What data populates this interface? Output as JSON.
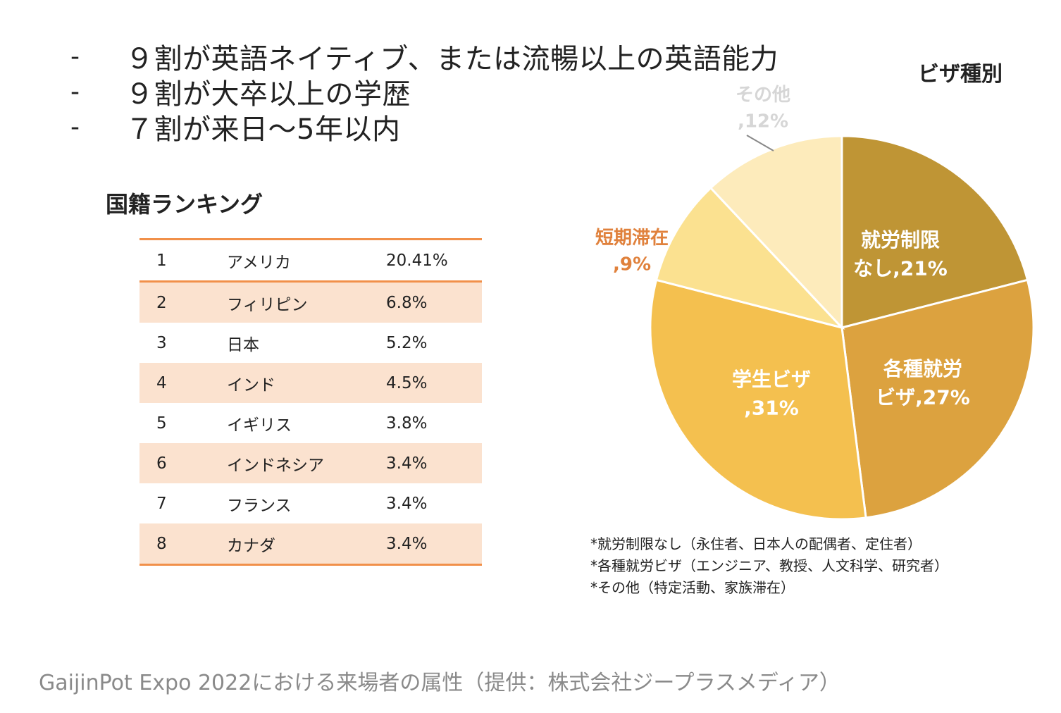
{
  "bullets": [
    {
      "dash": "-",
      "text": "９割が英語ネイティブ、または流暢以上の英語能力"
    },
    {
      "dash": "-",
      "text": "９割が大卒以上の学歴"
    },
    {
      "dash": "-",
      "text": "７割が来日～5年以内"
    }
  ],
  "ranking": {
    "title": "国籍ランキング",
    "rows": [
      {
        "rank": "1",
        "country": "アメリカ",
        "pct": "20.41%"
      },
      {
        "rank": "2",
        "country": "フィリピン",
        "pct": "6.8%"
      },
      {
        "rank": "3",
        "country": "日本",
        "pct": "5.2%"
      },
      {
        "rank": "4",
        "country": "インド",
        "pct": "4.5%"
      },
      {
        "rank": "5",
        "country": "イギリス",
        "pct": "3.8%"
      },
      {
        "rank": "6",
        "country": "インドネシア",
        "pct": "3.4%"
      },
      {
        "rank": "7",
        "country": "フランス",
        "pct": "3.4%"
      },
      {
        "rank": "8",
        "country": "カナダ",
        "pct": "3.4%"
      }
    ]
  },
  "chart_data": {
    "type": "pie",
    "title": "ビザ種別",
    "slices": [
      {
        "label_lines": [
          "就労制限",
          "なし,21%"
        ],
        "value": 21,
        "color": "#bf9535",
        "label_color": "#ffffff"
      },
      {
        "label_lines": [
          "各種就労",
          "ビザ,27%"
        ],
        "value": 27,
        "color": "#dca23f",
        "label_color": "#ffffff"
      },
      {
        "label_lines": [
          "学生ビザ",
          ",31%"
        ],
        "value": 31,
        "color": "#f4c04f",
        "label_color": "#ffffff"
      },
      {
        "label_lines": [
          "短期滞在",
          ",9%"
        ],
        "value": 9,
        "color": "#fbe190",
        "label_color": "#e0813c"
      },
      {
        "label_lines": [
          "その他",
          ",12%"
        ],
        "value": 12,
        "color": "#fdebbb",
        "label_color": "#d6d6d6"
      }
    ]
  },
  "notes": [
    "*就労制限なし（永住者、日本人の配偶者、定住者）",
    "*各種就労ビザ（エンジニア、教授、人文科学、研究者）",
    "*その他（特定活動、家族滞在）"
  ],
  "caption": "GaijinPot Expo 2022における来場者の属性（提供：株式会社ジープラスメディア）"
}
